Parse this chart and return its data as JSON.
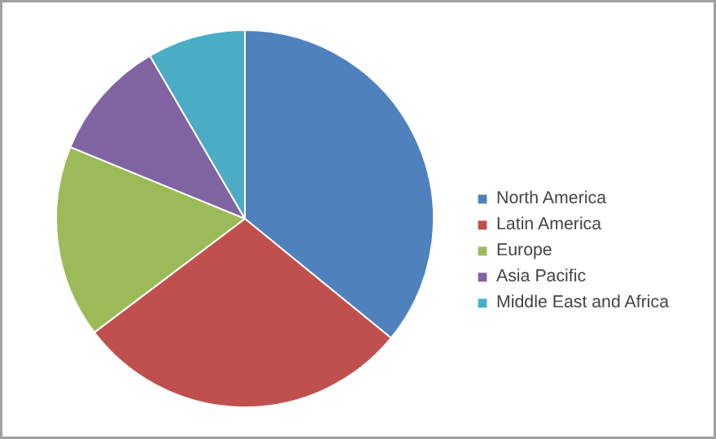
{
  "chart_data": {
    "type": "pie",
    "categories": [
      "North America",
      "Latin America",
      "Europe",
      "Asia Pacific",
      "Middle East and Africa"
    ],
    "values": [
      35.9,
      28.8,
      16.5,
      10.4,
      8.4
    ],
    "colors": [
      "#4f81bd",
      "#c0504d",
      "#9bbb59",
      "#8064a2",
      "#4bacc6"
    ],
    "legend": "right"
  }
}
